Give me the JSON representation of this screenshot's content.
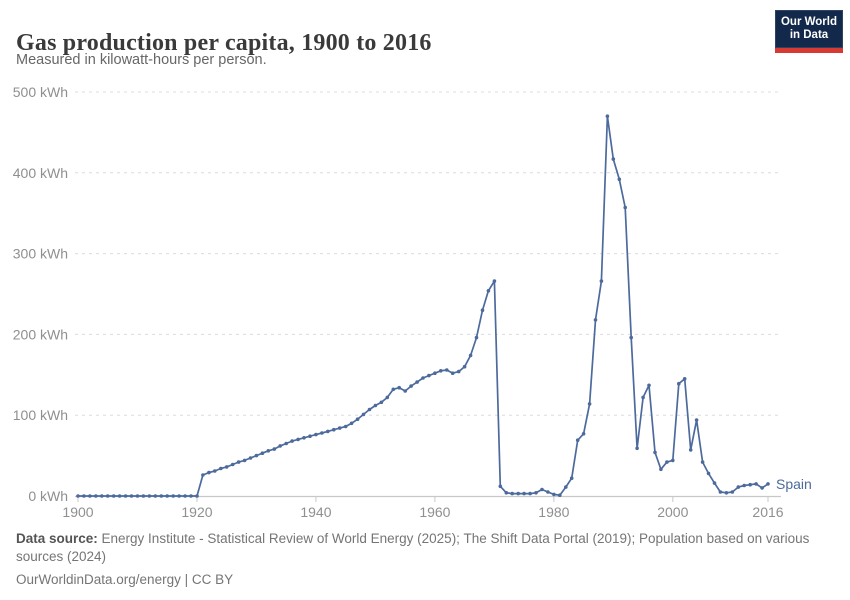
{
  "header": {
    "title": "Gas production per capita, 1900 to 2016",
    "subtitle": "Measured in kilowatt-hours per person.",
    "logo": {
      "line1": "Our World",
      "line2": "in Data"
    }
  },
  "chart_data": {
    "type": "line",
    "title": "Gas production per capita, 1900 to 2016",
    "ylabel": "kilowatt-hours per person",
    "xlim": [
      1900,
      2016
    ],
    "ylim": [
      0,
      500
    ],
    "grid": "horizontal-dashed",
    "legend": "end-of-line entity label",
    "x_ticks": [
      1900,
      1920,
      1940,
      1960,
      1980,
      2000,
      2016
    ],
    "x_tick_labels": [
      "1900",
      "1920",
      "1940",
      "1960",
      "1980",
      "2000",
      "2016"
    ],
    "y_ticks": [
      0,
      100,
      200,
      300,
      400,
      500
    ],
    "y_tick_labels": [
      "0 kWh",
      "100 kWh",
      "200 kWh",
      "300 kWh",
      "400 kWh",
      "500 kWh"
    ],
    "series": [
      {
        "name": "Spain",
        "color": "#4c6a9c",
        "x": [
          1900,
          1901,
          1902,
          1903,
          1904,
          1905,
          1906,
          1907,
          1908,
          1909,
          1910,
          1911,
          1912,
          1913,
          1914,
          1915,
          1916,
          1917,
          1918,
          1919,
          1920,
          1921,
          1922,
          1923,
          1924,
          1925,
          1926,
          1927,
          1928,
          1929,
          1930,
          1931,
          1932,
          1933,
          1934,
          1935,
          1936,
          1937,
          1938,
          1939,
          1940,
          1941,
          1942,
          1943,
          1944,
          1945,
          1946,
          1947,
          1948,
          1949,
          1950,
          1951,
          1952,
          1953,
          1954,
          1955,
          1956,
          1957,
          1958,
          1959,
          1960,
          1961,
          1962,
          1963,
          1964,
          1965,
          1966,
          1967,
          1968,
          1969,
          1970,
          1971,
          1972,
          1973,
          1974,
          1975,
          1976,
          1977,
          1978,
          1979,
          1980,
          1981,
          1982,
          1983,
          1984,
          1985,
          1986,
          1987,
          1988,
          1989,
          1990,
          1991,
          1992,
          1993,
          1994,
          1995,
          1996,
          1997,
          1998,
          1999,
          2000,
          2001,
          2002,
          2003,
          2004,
          2005,
          2006,
          2007,
          2008,
          2009,
          2010,
          2011,
          2012,
          2013,
          2014,
          2015,
          2016
        ],
        "values": [
          0,
          0,
          0,
          0,
          0,
          0,
          0,
          0,
          0,
          0,
          0,
          0,
          0,
          0,
          0,
          0,
          0,
          0,
          0,
          0,
          0,
          26,
          29,
          31,
          34,
          36,
          39,
          42,
          44,
          47,
          50,
          53,
          56,
          58,
          62,
          65,
          68,
          70,
          72,
          74,
          76,
          78,
          80,
          82,
          84,
          86,
          90,
          95,
          101,
          107,
          112,
          116,
          122,
          132,
          134,
          130,
          136,
          141,
          146,
          149,
          152,
          155,
          156,
          152,
          154,
          160,
          174,
          196,
          230,
          254,
          266,
          12,
          4,
          3,
          3,
          3,
          3,
          4,
          8,
          5,
          2,
          1,
          11,
          22,
          69,
          77,
          114,
          218,
          266,
          470,
          417,
          392,
          357,
          196,
          59,
          122,
          137,
          54,
          33,
          42,
          44,
          139,
          145,
          57,
          94,
          42,
          28,
          16,
          5,
          4,
          5,
          11,
          13,
          14,
          15,
          10,
          15
        ]
      }
    ]
  },
  "footer": {
    "data_source_label": "Data source:",
    "data_source_text": " Energy Institute - Statistical Review of World Energy (2025); The Shift Data Portal (2019); Population based on various sources (2024)",
    "link_line": "OurWorldinData.org/energy | CC BY"
  },
  "colors": {
    "series_line": "#4c6a9c",
    "grid_line": "#dcdcdc",
    "axis_line": "#c8c8c8",
    "tick_text": "#8f8f8f",
    "logo_background": "#13294b",
    "logo_stripe": "#d73a32"
  }
}
